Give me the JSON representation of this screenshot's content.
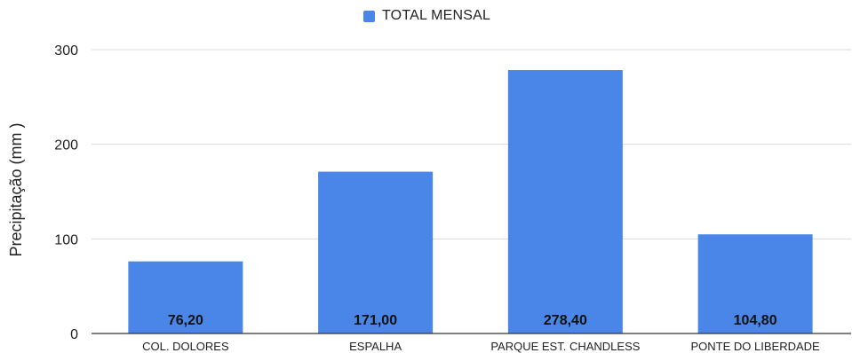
{
  "chart_data": {
    "type": "bar",
    "title": "",
    "xlabel": "",
    "ylabel": "Precipitação (mm )",
    "ylim": [
      0,
      300
    ],
    "yticks": [
      0,
      100,
      200,
      300
    ],
    "grid": true,
    "legend_position": "top-center",
    "bar_color": "#4a86e8",
    "categories": [
      "COL. DOLORES",
      "ESPALHA",
      "PARQUE EST. CHANDLESS",
      "PONTE DO LIBERDADE"
    ],
    "series": [
      {
        "name": "TOTAL MENSAL",
        "values": [
          76.2,
          171.0,
          278.4,
          104.8
        ],
        "value_labels": [
          "76,20",
          "171,00",
          "278,40",
          "104,80"
        ]
      }
    ]
  }
}
